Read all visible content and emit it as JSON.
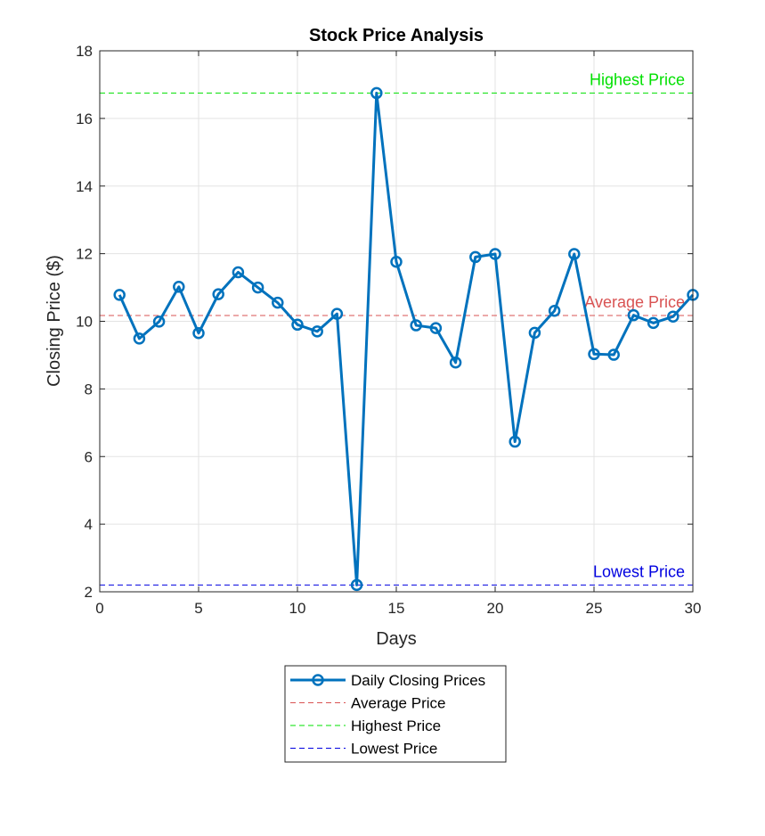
{
  "chart_data": {
    "type": "line",
    "title": "Stock Price Analysis",
    "xlabel": "Days",
    "ylabel": "Closing Price ($)",
    "xlim": [
      0,
      30
    ],
    "ylim": [
      2,
      18
    ],
    "xticks": [
      0,
      5,
      10,
      15,
      20,
      25,
      30
    ],
    "yticks": [
      2,
      4,
      6,
      8,
      10,
      12,
      14,
      16,
      18
    ],
    "grid": true,
    "legend_position": "bottom-outside",
    "series": [
      {
        "name": "Daily Closing Prices",
        "color": "#0072BD",
        "marker": "circle",
        "x": [
          1,
          2,
          3,
          4,
          5,
          6,
          7,
          8,
          9,
          10,
          11,
          12,
          13,
          14,
          15,
          16,
          17,
          18,
          19,
          20,
          21,
          22,
          23,
          24,
          25,
          26,
          27,
          28,
          29,
          30
        ],
        "y": [
          10.78,
          9.49,
          9.99,
          11.02,
          9.65,
          10.8,
          11.45,
          11.0,
          10.55,
          9.9,
          9.7,
          10.22,
          2.2,
          16.75,
          11.76,
          9.88,
          9.8,
          8.78,
          11.9,
          11.99,
          6.44,
          9.66,
          10.31,
          11.99,
          9.03,
          9.01,
          10.18,
          9.95,
          10.14,
          10.78
        ]
      }
    ],
    "reference_lines": [
      {
        "name": "Average Price",
        "label": "Average Price",
        "y": 10.17,
        "color": "#D95353"
      },
      {
        "name": "Highest Price",
        "label": "Highest Price",
        "y": 16.75,
        "color": "#00E000"
      },
      {
        "name": "Lowest Price",
        "label": "Lowest Price",
        "y": 2.2,
        "color": "#0000E0"
      }
    ]
  }
}
